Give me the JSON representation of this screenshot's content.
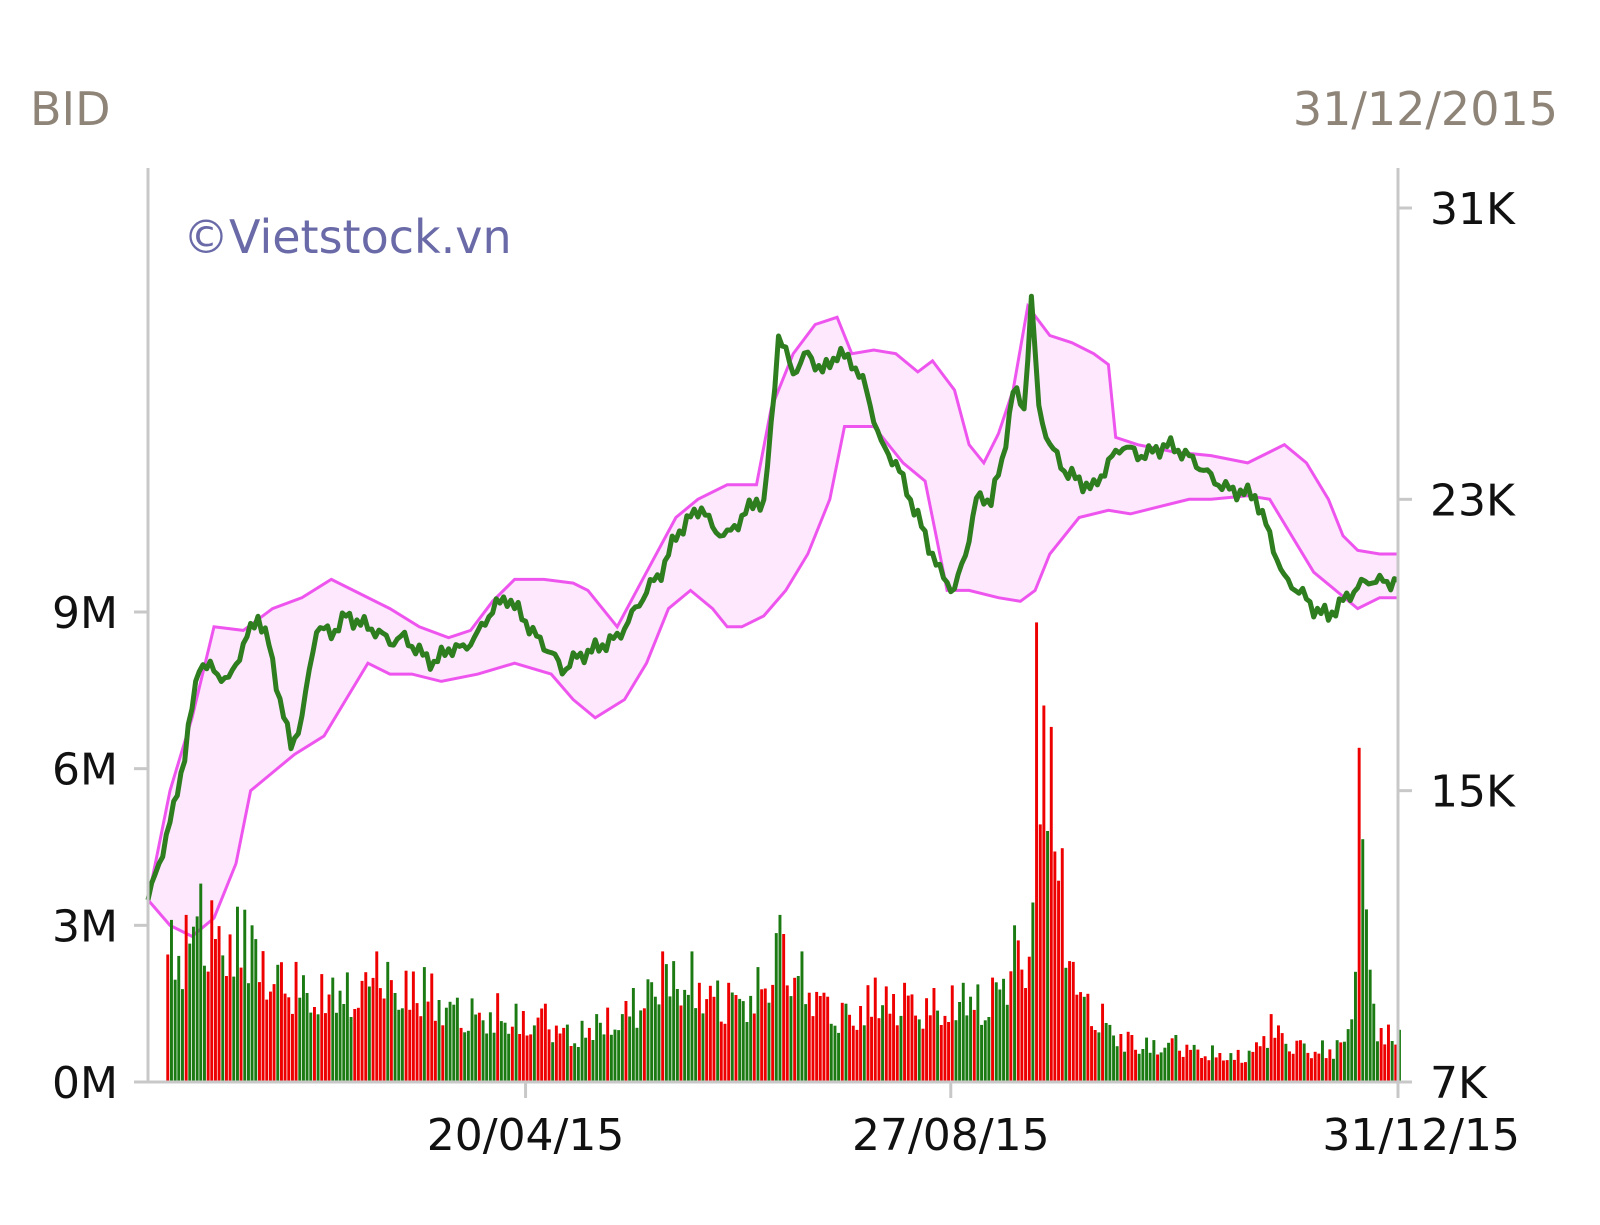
{
  "header": {
    "symbol": "BID",
    "date": "31/12/2015"
  },
  "watermark": "©Vietstock.vn",
  "colors": {
    "price_line": "#2e7d1f",
    "band_line": "#ee55ee",
    "band_fill": "#fde8fd",
    "volume_up": "#1b7a12",
    "volume_down": "#ee0000",
    "axis": "#c8c8c8"
  },
  "chart_data": {
    "type": "line",
    "x_ticks": [
      "20/04/15",
      "27/08/15",
      "31/12/15"
    ],
    "left_axis": {
      "ticks": [
        "0M",
        "3M",
        "6M",
        "9M"
      ],
      "range": [
        0,
        9
      ]
    },
    "right_axis": {
      "ticks": [
        "7K",
        "15K",
        "23K",
        "31K"
      ],
      "range": [
        7,
        31
      ]
    },
    "grid": false,
    "series": [
      {
        "role": "price",
        "axis": "right",
        "points": [
          [
            0,
            12.0
          ],
          [
            3,
            13.0
          ],
          [
            7,
            14.5
          ],
          [
            10,
            16.0
          ],
          [
            14,
            18.5
          ],
          [
            18,
            18.3
          ],
          [
            22,
            18.0
          ],
          [
            26,
            19.0
          ],
          [
            30,
            19.8
          ],
          [
            33,
            19.0
          ],
          [
            36,
            17.5
          ],
          [
            39,
            16.2
          ],
          [
            42,
            17.0
          ],
          [
            46,
            19.5
          ],
          [
            50,
            19.3
          ],
          [
            54,
            19.8
          ],
          [
            58,
            19.6
          ],
          [
            62,
            19.4
          ],
          [
            66,
            19.1
          ],
          [
            70,
            19.2
          ],
          [
            74,
            18.8
          ],
          [
            78,
            18.5
          ],
          [
            82,
            18.9
          ],
          [
            86,
            18.9
          ],
          [
            90,
            19.3
          ],
          [
            94,
            20.0
          ],
          [
            98,
            20.3
          ],
          [
            102,
            19.8
          ],
          [
            106,
            19.2
          ],
          [
            110,
            18.8
          ],
          [
            113,
            18.3
          ],
          [
            116,
            18.6
          ],
          [
            120,
            18.8
          ],
          [
            124,
            19.0
          ],
          [
            128,
            19.2
          ],
          [
            132,
            19.8
          ],
          [
            136,
            20.5
          ],
          [
            140,
            21.0
          ],
          [
            144,
            22.0
          ],
          [
            148,
            22.5
          ],
          [
            151,
            22.8
          ],
          [
            154,
            22.2
          ],
          [
            158,
            22.0
          ],
          [
            162,
            22.5
          ],
          [
            166,
            23.0
          ],
          [
            168,
            22.8
          ],
          [
            170,
            25.0
          ],
          [
            172,
            27.5
          ],
          [
            174,
            27.0
          ],
          [
            176,
            26.5
          ],
          [
            180,
            27.0
          ],
          [
            184,
            26.5
          ],
          [
            188,
            27.0
          ],
          [
            192,
            26.8
          ],
          [
            196,
            26.0
          ],
          [
            200,
            24.5
          ],
          [
            204,
            24.0
          ],
          [
            208,
            23.0
          ],
          [
            212,
            22.0
          ],
          [
            216,
            21.0
          ],
          [
            220,
            20.5
          ],
          [
            223,
            21.5
          ],
          [
            226,
            23.0
          ],
          [
            230,
            23.0
          ],
          [
            233,
            24.0
          ],
          [
            236,
            26.0
          ],
          [
            239,
            25.5
          ],
          [
            241,
            28.5
          ],
          [
            243,
            25.5
          ],
          [
            246,
            24.5
          ],
          [
            250,
            23.8
          ],
          [
            254,
            23.5
          ],
          [
            258,
            23.3
          ],
          [
            262,
            24.0
          ],
          [
            266,
            24.5
          ],
          [
            270,
            24.2
          ],
          [
            274,
            24.3
          ],
          [
            278,
            24.5
          ],
          [
            282,
            24.3
          ],
          [
            286,
            24.0
          ],
          [
            290,
            23.6
          ],
          [
            294,
            23.3
          ],
          [
            298,
            23.2
          ],
          [
            302,
            23.1
          ],
          [
            306,
            22.0
          ],
          [
            310,
            20.8
          ],
          [
            314,
            20.5
          ],
          [
            318,
            20.0
          ],
          [
            322,
            19.8
          ],
          [
            326,
            20.2
          ],
          [
            330,
            20.6
          ],
          [
            334,
            20.8
          ],
          [
            338,
            20.7
          ],
          [
            341,
            20.8
          ]
        ]
      },
      {
        "role": "band-upper",
        "axis": "right",
        "points": [
          [
            0,
            12.0
          ],
          [
            6,
            15.0
          ],
          [
            12,
            17.0
          ],
          [
            18,
            19.5
          ],
          [
            26,
            19.4
          ],
          [
            34,
            20.0
          ],
          [
            42,
            20.3
          ],
          [
            50,
            20.8
          ],
          [
            58,
            20.4
          ],
          [
            66,
            20.0
          ],
          [
            74,
            19.5
          ],
          [
            82,
            19.2
          ],
          [
            88,
            19.4
          ],
          [
            94,
            20.2
          ],
          [
            100,
            20.8
          ],
          [
            108,
            20.8
          ],
          [
            116,
            20.7
          ],
          [
            120,
            20.5
          ],
          [
            128,
            19.5
          ],
          [
            136,
            21.0
          ],
          [
            144,
            22.5
          ],
          [
            150,
            23.0
          ],
          [
            158,
            23.4
          ],
          [
            166,
            23.4
          ],
          [
            170,
            25.5
          ],
          [
            176,
            27.0
          ],
          [
            182,
            27.8
          ],
          [
            188,
            28.0
          ],
          [
            192,
            27.0
          ],
          [
            198,
            27.1
          ],
          [
            204,
            27.0
          ],
          [
            210,
            26.5
          ],
          [
            214,
            26.8
          ],
          [
            220,
            26.0
          ],
          [
            224,
            24.5
          ],
          [
            228,
            24.0
          ],
          [
            232,
            24.8
          ],
          [
            236,
            26.0
          ],
          [
            240,
            28.3
          ],
          [
            246,
            27.5
          ],
          [
            252,
            27.3
          ],
          [
            258,
            27.0
          ],
          [
            262,
            26.7
          ],
          [
            264,
            24.7
          ],
          [
            270,
            24.5
          ],
          [
            280,
            24.3
          ],
          [
            290,
            24.2
          ],
          [
            300,
            24.0
          ],
          [
            306,
            24.3
          ],
          [
            310,
            24.5
          ],
          [
            316,
            24.0
          ],
          [
            322,
            23.0
          ],
          [
            326,
            22.0
          ],
          [
            330,
            21.6
          ],
          [
            336,
            21.5
          ],
          [
            341,
            21.5
          ]
        ]
      },
      {
        "role": "band-lower",
        "axis": "right",
        "points": [
          [
            0,
            12.0
          ],
          [
            6,
            11.3
          ],
          [
            12,
            11.0
          ],
          [
            18,
            11.5
          ],
          [
            24,
            13.0
          ],
          [
            28,
            15.0
          ],
          [
            34,
            15.5
          ],
          [
            40,
            16.0
          ],
          [
            48,
            16.5
          ],
          [
            54,
            17.5
          ],
          [
            60,
            18.5
          ],
          [
            66,
            18.2
          ],
          [
            72,
            18.2
          ],
          [
            80,
            18.0
          ],
          [
            90,
            18.2
          ],
          [
            100,
            18.5
          ],
          [
            110,
            18.2
          ],
          [
            116,
            17.5
          ],
          [
            122,
            17.0
          ],
          [
            130,
            17.5
          ],
          [
            136,
            18.5
          ],
          [
            142,
            20.0
          ],
          [
            148,
            20.5
          ],
          [
            154,
            20.0
          ],
          [
            158,
            19.5
          ],
          [
            162,
            19.5
          ],
          [
            168,
            19.8
          ],
          [
            174,
            20.5
          ],
          [
            180,
            21.5
          ],
          [
            186,
            23.0
          ],
          [
            190,
            25.0
          ],
          [
            198,
            25.0
          ],
          [
            206,
            24.0
          ],
          [
            212,
            23.5
          ],
          [
            218,
            20.5
          ],
          [
            224,
            20.5
          ],
          [
            232,
            20.3
          ],
          [
            238,
            20.2
          ],
          [
            242,
            20.5
          ],
          [
            246,
            21.5
          ],
          [
            254,
            22.5
          ],
          [
            262,
            22.7
          ],
          [
            268,
            22.6
          ],
          [
            276,
            22.8
          ],
          [
            284,
            23.0
          ],
          [
            290,
            23.0
          ],
          [
            300,
            23.1
          ],
          [
            306,
            23.0
          ],
          [
            312,
            22.0
          ],
          [
            318,
            21.0
          ],
          [
            324,
            20.5
          ],
          [
            330,
            20.0
          ],
          [
            336,
            20.3
          ],
          [
            341,
            20.3
          ]
        ]
      },
      {
        "role": "volume",
        "type": "bar",
        "axis": "left",
        "note": "daily traded volume, green = up day, red = down day",
        "peaks": [
          [
            10,
            3.2
          ],
          [
            14,
            3.8
          ],
          [
            26,
            3.3
          ],
          [
            28,
            3.0
          ],
          [
            40,
            2.3
          ],
          [
            50,
            2.0
          ],
          [
            62,
            2.5
          ],
          [
            75,
            2.2
          ],
          [
            88,
            1.6
          ],
          [
            95,
            1.7
          ],
          [
            100,
            1.5
          ],
          [
            108,
            1.5
          ],
          [
            114,
            1.1
          ],
          [
            122,
            1.3
          ],
          [
            132,
            1.8
          ],
          [
            140,
            2.5
          ],
          [
            148,
            2.5
          ],
          [
            158,
            1.9
          ],
          [
            166,
            2.2
          ],
          [
            172,
            3.2
          ],
          [
            178,
            2.5
          ],
          [
            190,
            1.5
          ],
          [
            198,
            2.0
          ],
          [
            206,
            1.9
          ],
          [
            214,
            1.8
          ],
          [
            222,
            1.9
          ],
          [
            230,
            2.0
          ],
          [
            236,
            3.0
          ],
          [
            240,
            2.4
          ],
          [
            242,
            8.8
          ],
          [
            246,
            6.8
          ],
          [
            252,
            2.3
          ],
          [
            260,
            1.5
          ],
          [
            268,
            0.9
          ],
          [
            280,
            0.9
          ],
          [
            290,
            0.7
          ],
          [
            300,
            0.6
          ],
          [
            306,
            1.3
          ],
          [
            314,
            0.8
          ],
          [
            324,
            0.8
          ],
          [
            328,
            1.2
          ],
          [
            330,
            6.4
          ],
          [
            334,
            1.5
          ],
          [
            338,
            1.1
          ],
          [
            341,
            1.0
          ]
        ]
      }
    ]
  }
}
